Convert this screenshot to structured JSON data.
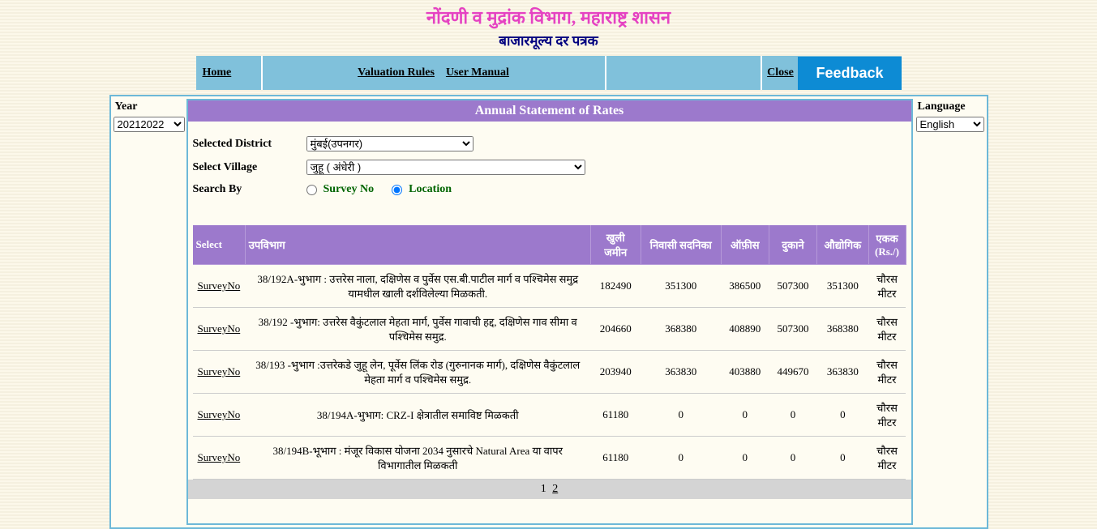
{
  "header": {
    "title_main": "नोंदणी व मुद्रांक विभाग, महाराष्ट्र शासन",
    "title_sub": "बाजारमूल्य दर पत्रक"
  },
  "nav": {
    "home": "Home",
    "valuation_rules": "Valuation Rules",
    "user_manual": "User Manual",
    "close": "Close",
    "feedback": "Feedback"
  },
  "sidebar_left": {
    "year_label": "Year",
    "year_value": "20212022"
  },
  "sidebar_right": {
    "language_label": "Language",
    "language_value": "English"
  },
  "asr": {
    "heading": "Annual Statement of Rates",
    "selected_district_label": "Selected District",
    "selected_district_value": "मुंबई(उपनगर)",
    "select_village_label": "Select Village",
    "select_village_value": "जुहू ( अंधेरी )",
    "search_by_label": "Search By",
    "survey_no_label": "Survey No",
    "location_label": "Location",
    "search_mode": "location"
  },
  "table": {
    "headers": {
      "select": "Select",
      "subdivision": "उपविभाग",
      "open_land": "खुली जमीन",
      "residential": "निवासी सदनिका",
      "office": "ऑफ़ीस",
      "shop": "दुकाने",
      "industrial": "औद्योगिक",
      "unit": "एकक (Rs./)"
    },
    "survey_link_label": "SurveyNo",
    "unit_value": "चौरस मीटर",
    "rows": [
      {
        "desc": "38/192A-भुभाग : उत्तरेस नाला, दक्षिणेस व पुर्वेस एस.बी.पाटील मार्ग व पश्चिमेस समुद्र यामधील खाली दर्शविलेल्या मिळकती.",
        "open_land": "182490",
        "residential": "351300",
        "office": "386500",
        "shop": "507300",
        "industrial": "351300"
      },
      {
        "desc": "38/192 -भुभाग: उत्तरेस वैकुंटलाल मेहता मार्ग, पुर्वेस गावाची हद्द, दक्षिणेस गाव सीमा व पश्चिमेस समुद्र.",
        "open_land": "204660",
        "residential": "368380",
        "office": "408890",
        "shop": "507300",
        "industrial": "368380"
      },
      {
        "desc": "38/193 -भुभाग :उत्तरेकडे जुहू लेन, पूर्वेस लिंक रोड (गुरुनानक मार्ग), दक्षिणेस वैकुंटलाल मेहता मार्ग व पश्चिमेस समुद्र.",
        "open_land": "203940",
        "residential": "363830",
        "office": "403880",
        "shop": "449670",
        "industrial": "363830"
      },
      {
        "desc": "38/194A-भुभाग: CRZ-I क्षेत्रातील समाविष्ट मिळकती",
        "open_land": "61180",
        "residential": "0",
        "office": "0",
        "shop": "0",
        "industrial": "0"
      },
      {
        "desc": "38/194B-भूभाग : मंजूर विकास योजना 2034 नुसारचे Natural Area या वापर विभागातील मिळकती",
        "open_land": "61180",
        "residential": "0",
        "office": "0",
        "shop": "0",
        "industrial": "0"
      }
    ]
  },
  "pager": {
    "current": "1",
    "next": "2"
  },
  "colors": {
    "accent_purple": "#9c79cc",
    "accent_blue": "#80c1db",
    "border_blue": "#6db8d8",
    "feedback_blue": "#0d8bd4",
    "title_pink": "#e542c2",
    "title_navy": "#000080",
    "searchby_green": "#006400"
  }
}
